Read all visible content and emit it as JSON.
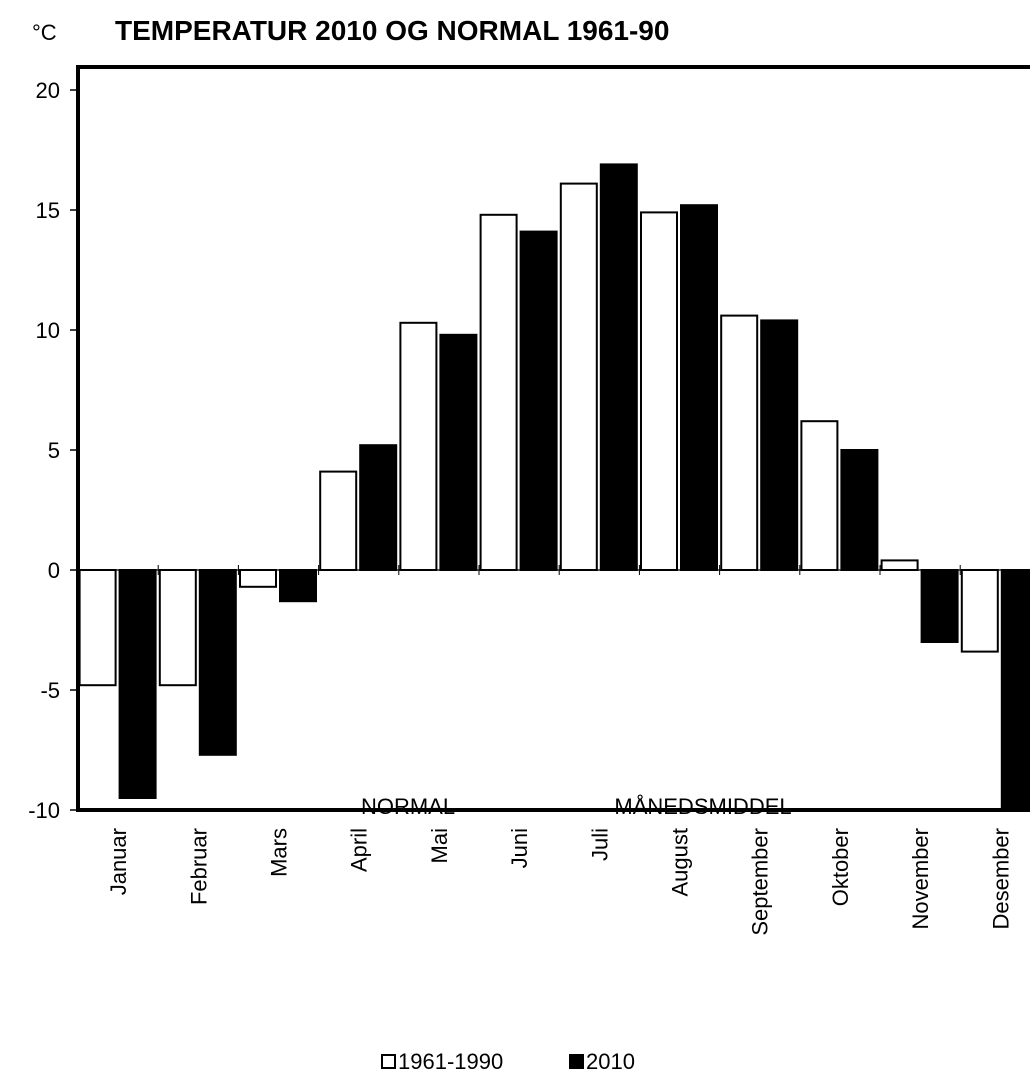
{
  "chart_data": {
    "type": "bar",
    "title": "TEMPERATUR 2010 OG NORMAL 1961-90",
    "y_unit": "°C",
    "categories": [
      "Januar",
      "Februar",
      "Mars",
      "April",
      "Mai",
      "Juni",
      "Juli",
      "August",
      "September",
      "Oktober",
      "November",
      "Desember"
    ],
    "series": [
      {
        "name": "1961-1990",
        "color": "#ffffff",
        "values": [
          -4.8,
          -4.8,
          -0.7,
          4.1,
          10.3,
          14.8,
          16.1,
          14.9,
          10.6,
          6.2,
          0.4,
          -3.4
        ]
      },
      {
        "name": "2010",
        "color": "#000000",
        "values": [
          -9.5,
          -7.7,
          -1.3,
          5.2,
          9.8,
          14.1,
          16.9,
          15.2,
          10.4,
          5.0,
          -3.0,
          -10.0
        ]
      }
    ],
    "ylim": [
      -10,
      21
    ],
    "yticks": [
      "20",
      "15",
      "10",
      "5",
      "0",
      "-5",
      "-10"
    ],
    "ytick_values": [
      20,
      15,
      10,
      5,
      0,
      -5,
      -10
    ],
    "annotations": [
      "NORMAL",
      "MÅNEDSMIDDEL"
    ],
    "legend_position": "bottom",
    "grid": false
  }
}
